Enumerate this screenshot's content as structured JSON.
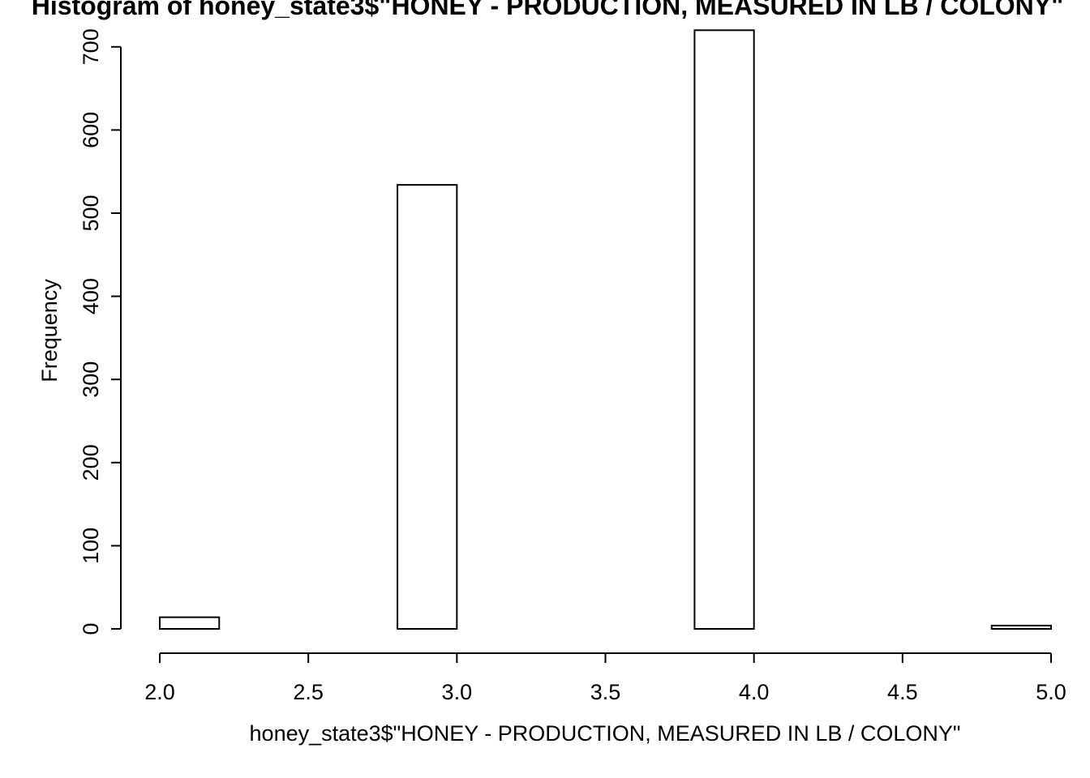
{
  "chart_data": {
    "type": "bar",
    "title": "Histogram of honey_state3$\"HONEY - PRODUCTION, MEASURED IN LB / COLONY\"",
    "xlabel": "honey_state3$\"HONEY - PRODUCTION, MEASURED IN LB / COLONY\"",
    "ylabel": "Frequency",
    "bins": [
      {
        "start": 2.0,
        "end": 2.2,
        "count": 14
      },
      {
        "start": 2.2,
        "end": 2.4,
        "count": 0
      },
      {
        "start": 2.4,
        "end": 2.6,
        "count": 0
      },
      {
        "start": 2.6,
        "end": 2.8,
        "count": 0
      },
      {
        "start": 2.8,
        "end": 3.0,
        "count": 534
      },
      {
        "start": 3.0,
        "end": 3.2,
        "count": 0
      },
      {
        "start": 3.2,
        "end": 3.4,
        "count": 0
      },
      {
        "start": 3.4,
        "end": 3.6,
        "count": 0
      },
      {
        "start": 3.6,
        "end": 3.8,
        "count": 0
      },
      {
        "start": 3.8,
        "end": 4.0,
        "count": 720
      },
      {
        "start": 4.0,
        "end": 4.2,
        "count": 0
      },
      {
        "start": 4.2,
        "end": 4.4,
        "count": 0
      },
      {
        "start": 4.4,
        "end": 4.6,
        "count": 0
      },
      {
        "start": 4.6,
        "end": 4.8,
        "count": 0
      },
      {
        "start": 4.8,
        "end": 5.0,
        "count": 4
      }
    ],
    "x_ticks": [
      "2.0",
      "2.5",
      "3.0",
      "3.5",
      "4.0",
      "4.5",
      "5.0"
    ],
    "y_ticks": [
      "0",
      "100",
      "200",
      "300",
      "400",
      "500",
      "600",
      "700"
    ],
    "xlim": [
      2.0,
      5.0
    ],
    "ylim": [
      0,
      720
    ],
    "grid": false
  }
}
